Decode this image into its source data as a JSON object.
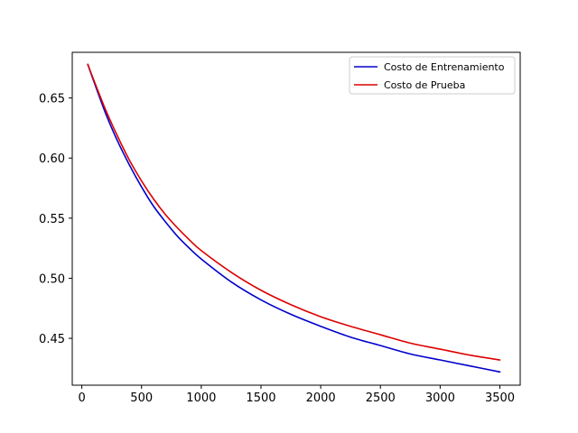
{
  "chart_data": {
    "type": "line",
    "title": "",
    "xlabel": "",
    "ylabel": "",
    "xlim": [
      -80,
      3670
    ],
    "ylim": [
      0.411,
      0.688
    ],
    "x_ticks": [
      0,
      500,
      1000,
      1500,
      2000,
      2500,
      3000,
      3500
    ],
    "y_ticks": [
      0.45,
      0.5,
      0.55,
      0.6,
      0.65
    ],
    "y_tick_labels": [
      "0.45",
      "0.50",
      "0.55",
      "0.60",
      "0.65"
    ],
    "grid": false,
    "legend_position": "top-right",
    "series": [
      {
        "name": "Costo de Entrenamiento",
        "color": "#0000cc",
        "x": [
          50,
          100,
          200,
          300,
          400,
          500,
          600,
          700,
          800,
          900,
          1000,
          1250,
          1500,
          1750,
          2000,
          2250,
          2500,
          2750,
          3000,
          3250,
          3500
        ],
        "y": [
          0.678,
          0.664,
          0.637,
          0.614,
          0.594,
          0.576,
          0.56,
          0.547,
          0.535,
          0.525,
          0.516,
          0.497,
          0.482,
          0.47,
          0.46,
          0.451,
          0.444,
          0.437,
          0.432,
          0.427,
          0.422
        ]
      },
      {
        "name": "Costo de Prueba",
        "color": "#dd0000",
        "x": [
          50,
          100,
          200,
          300,
          400,
          500,
          600,
          700,
          800,
          900,
          1000,
          1250,
          1500,
          1750,
          2000,
          2250,
          2500,
          2750,
          3000,
          3250,
          3500
        ],
        "y": [
          0.678,
          0.665,
          0.64,
          0.618,
          0.598,
          0.581,
          0.566,
          0.553,
          0.542,
          0.532,
          0.523,
          0.505,
          0.49,
          0.478,
          0.468,
          0.46,
          0.453,
          0.446,
          0.441,
          0.436,
          0.432
        ]
      }
    ]
  }
}
